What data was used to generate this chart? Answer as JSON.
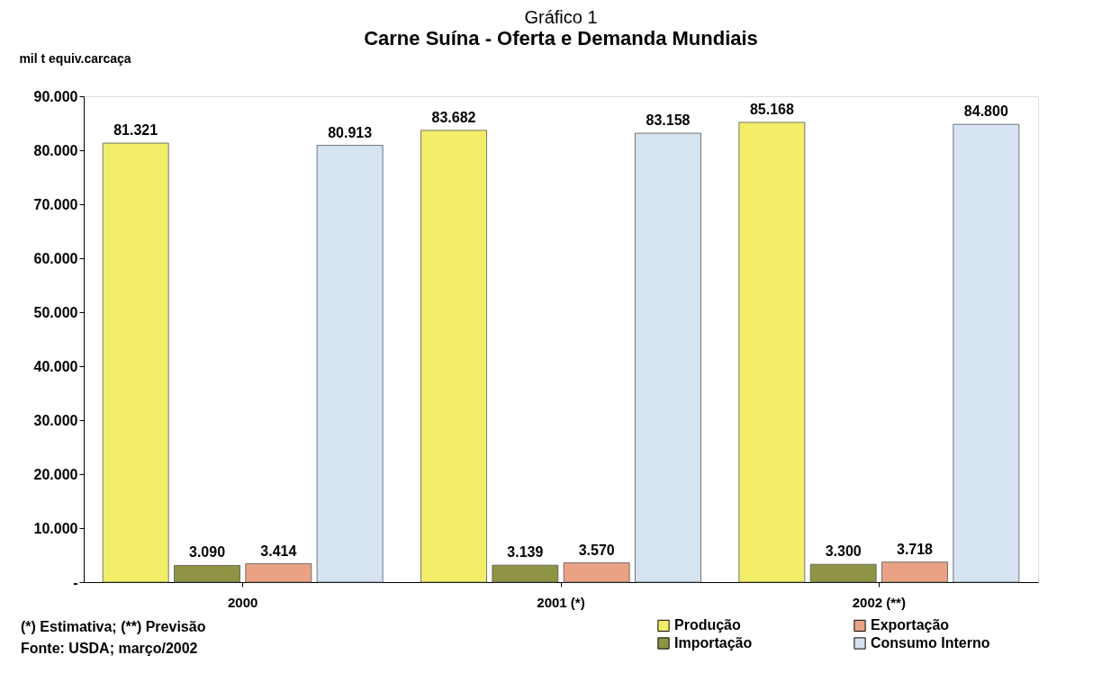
{
  "chart_data": {
    "type": "bar",
    "title": "Gráfico 1",
    "subtitle": "Carne Suína - Oferta e Demanda Mundiais",
    "ylabel": "mil t equiv.carcaça",
    "categories": [
      "2000",
      "2001 (*)",
      "2002 (**)"
    ],
    "series": [
      {
        "name": "Produção",
        "color": "#f3ee6a",
        "values": [
          81321,
          83682,
          85168
        ],
        "value_labels": [
          "81.321",
          "83.682",
          "85.168"
        ]
      },
      {
        "name": "Importação",
        "color": "#8e9444",
        "values": [
          3090,
          3139,
          3300
        ],
        "value_labels": [
          "3.090",
          "3.139",
          "3.300"
        ]
      },
      {
        "name": "Exportação",
        "color": "#e9a384",
        "values": [
          3414,
          3570,
          3718
        ],
        "value_labels": [
          "3.414",
          "3.570",
          "3.718"
        ]
      },
      {
        "name": "Consumo Interno",
        "color": "#d6e3f1",
        "values": [
          80913,
          83158,
          84800
        ],
        "value_labels": [
          "80.913",
          "83.158",
          "84.800"
        ]
      }
    ],
    "ylim": [
      0,
      90000
    ],
    "yticks": [
      {
        "value": 0,
        "label": "-"
      },
      {
        "value": 10000,
        "label": "10.000"
      },
      {
        "value": 20000,
        "label": "20.000"
      },
      {
        "value": 30000,
        "label": "30.000"
      },
      {
        "value": 40000,
        "label": "40.000"
      },
      {
        "value": 50000,
        "label": "50.000"
      },
      {
        "value": 60000,
        "label": "60.000"
      },
      {
        "value": 70000,
        "label": "70.000"
      },
      {
        "value": 80000,
        "label": "80.000"
      },
      {
        "value": 90000,
        "label": "90.000"
      }
    ],
    "grid": false,
    "legend": "bottom right",
    "annotations": [
      "(*) Estimativa; (**) Previsão",
      "Fonte: USDA; março/2002"
    ]
  }
}
